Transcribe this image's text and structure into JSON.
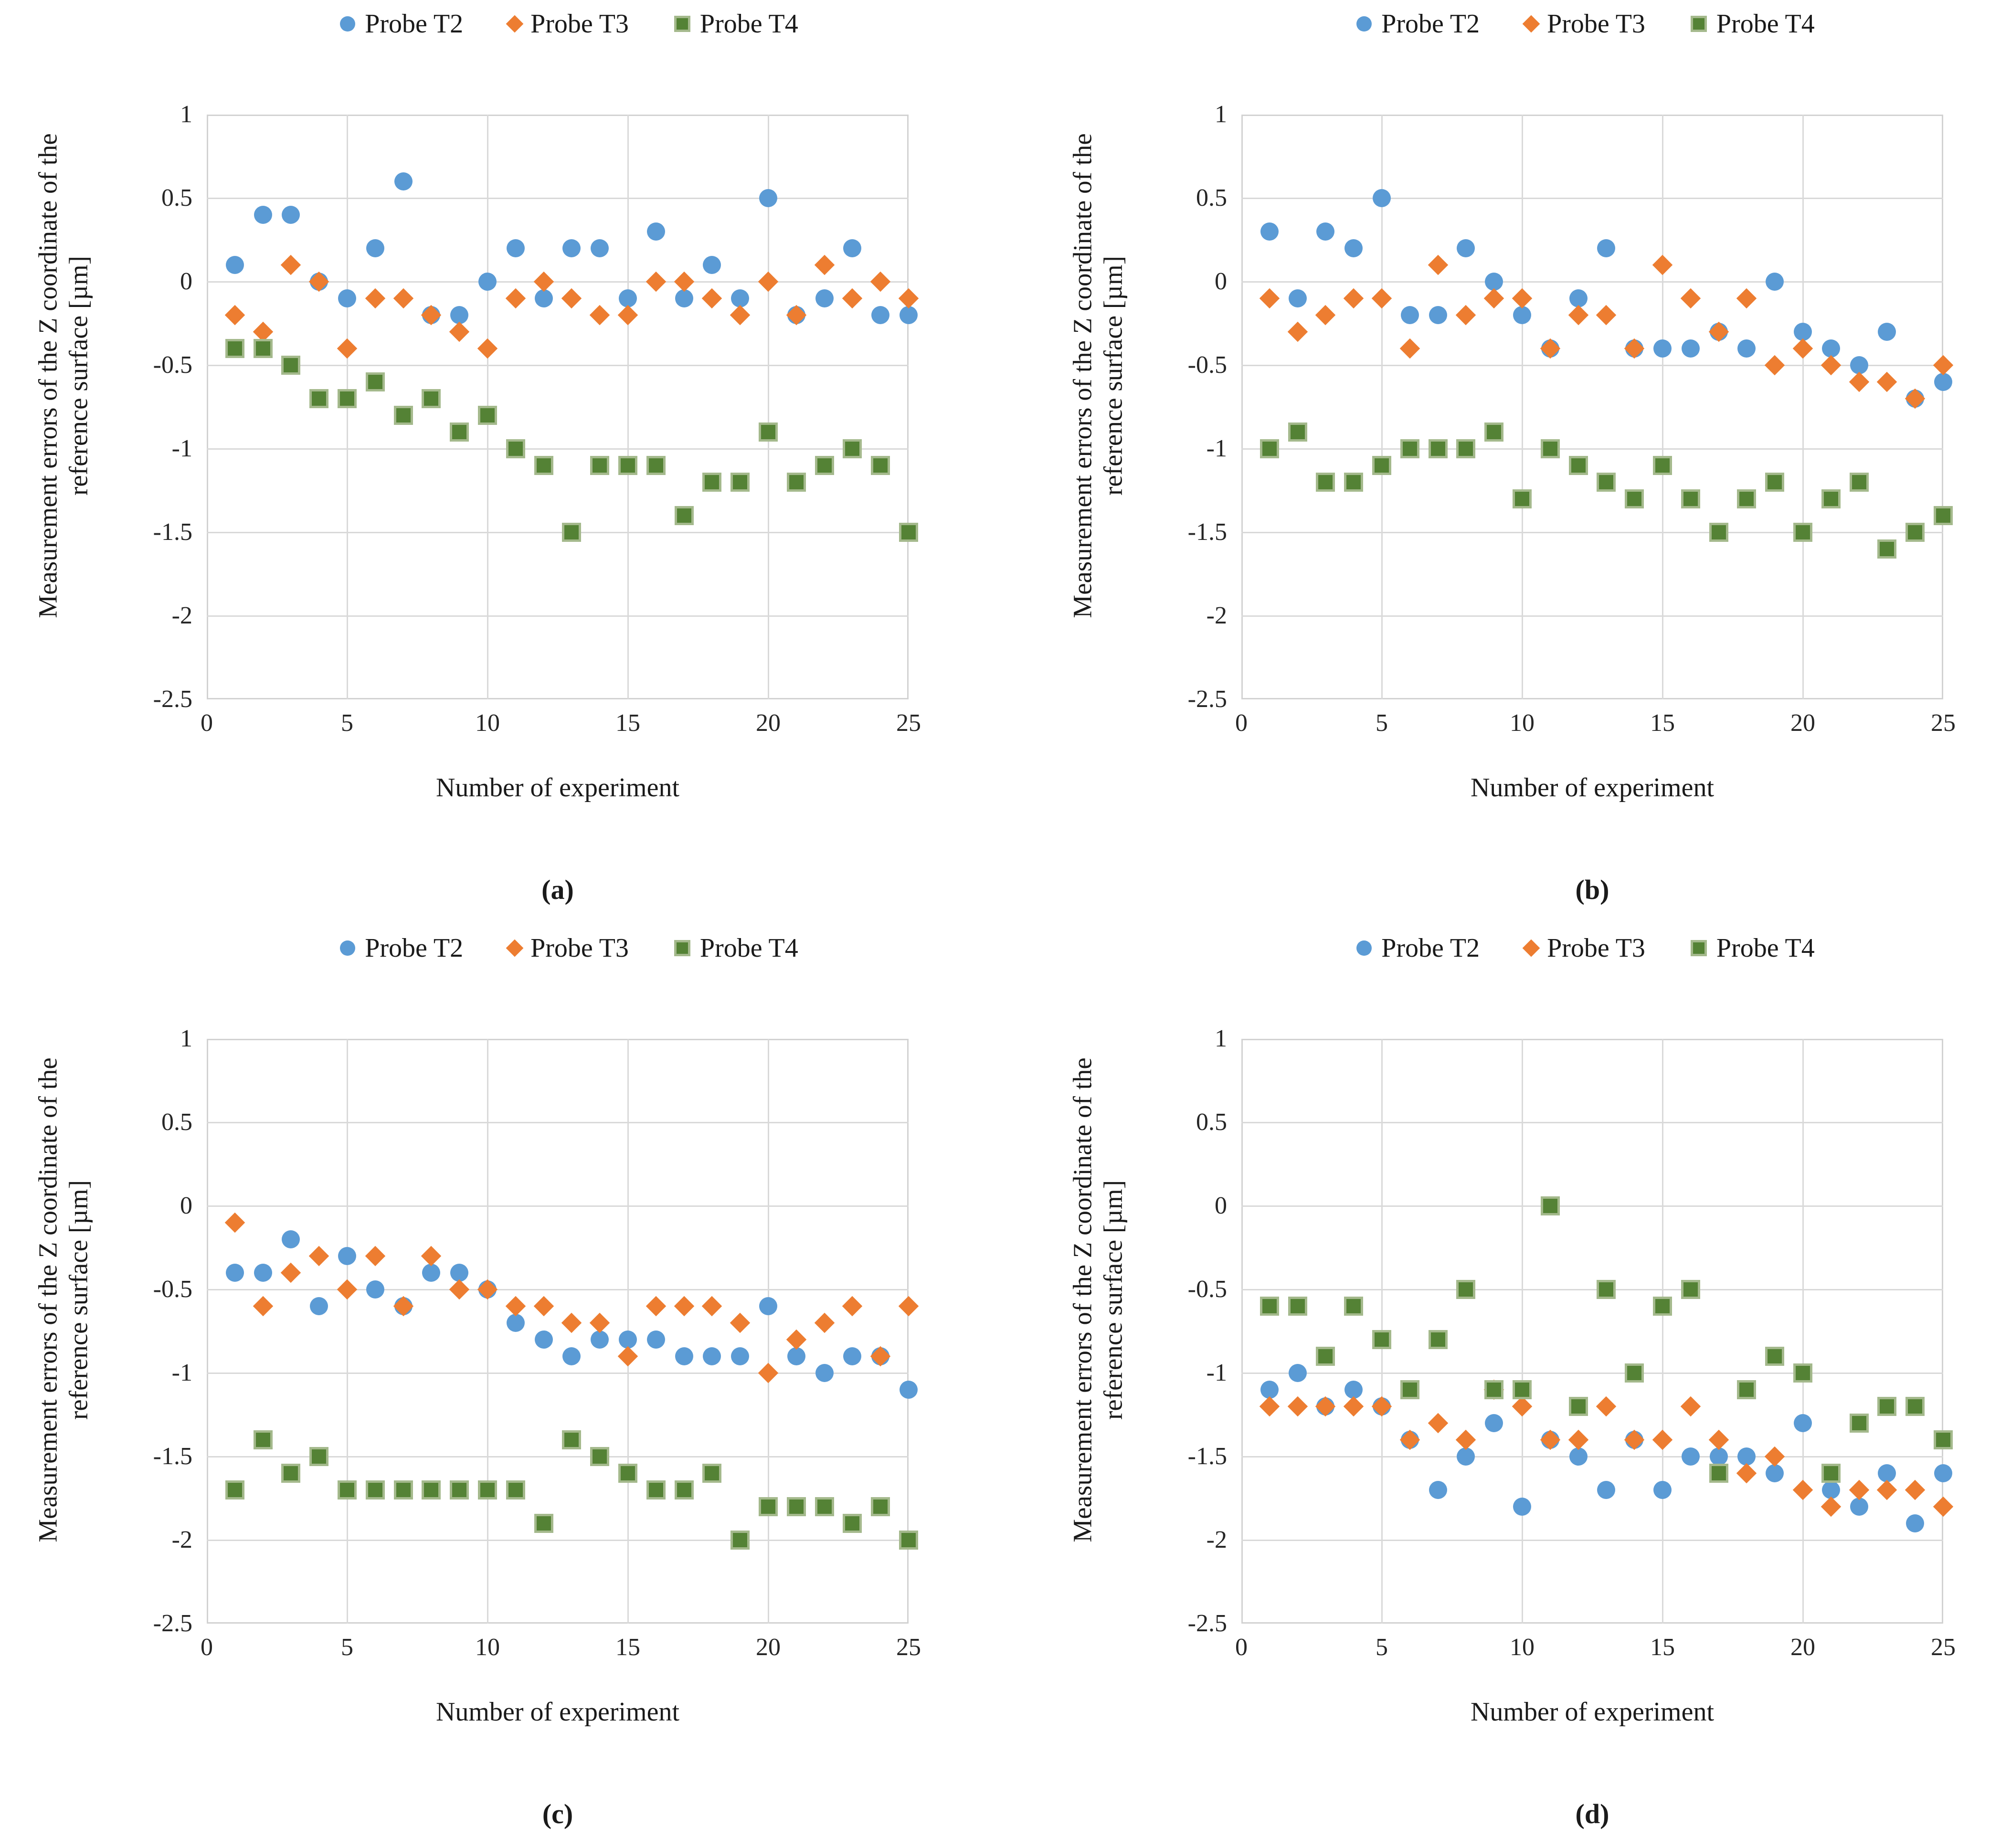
{
  "legend": {
    "items": [
      {
        "label": "Probe T2",
        "color": "#5b9bd5",
        "shape": "circle"
      },
      {
        "label": "Probe T3",
        "color": "#ed7d31",
        "shape": "diamond"
      },
      {
        "label": "Probe T4",
        "color": "#548235",
        "shape": "square",
        "border_color": "#a4b98c"
      }
    ]
  },
  "axes": {
    "y_title": "Measurement errors of the Z coordinate of the reference surface [µm]",
    "x_title": "Number of experiment",
    "ylim": [
      -2.5,
      1
    ],
    "xlim": [
      0,
      25
    ],
    "yticks": [
      1,
      0.5,
      0,
      -0.5,
      -1,
      -1.5,
      -2,
      -2.5
    ],
    "xticks": [
      0,
      5,
      10,
      15,
      20,
      25
    ],
    "grid": true,
    "legend_position": "top"
  },
  "x": [
    1,
    2,
    3,
    4,
    5,
    6,
    7,
    8,
    9,
    10,
    11,
    12,
    13,
    14,
    15,
    16,
    17,
    18,
    19,
    20,
    21,
    22,
    23,
    24,
    25
  ],
  "chart_data": [
    {
      "panel": "a",
      "caption": "(a)",
      "type": "scatter",
      "xlabel": "Number of experiment",
      "ylabel": "Measurement errors of the Z coordinate of the reference surface [µm]",
      "series": [
        {
          "name": "Probe T2",
          "color": "#5b9bd5",
          "shape": "circle",
          "values": [
            0.1,
            0.4,
            0.4,
            0.0,
            -0.1,
            0.2,
            0.6,
            -0.2,
            -0.2,
            0.0,
            0.2,
            -0.1,
            0.2,
            0.2,
            -0.1,
            0.3,
            -0.1,
            0.1,
            -0.1,
            0.5,
            -0.2,
            -0.1,
            0.2,
            -0.2,
            -0.2
          ]
        },
        {
          "name": "Probe T3",
          "color": "#ed7d31",
          "shape": "diamond",
          "values": [
            -0.2,
            -0.3,
            0.1,
            0.0,
            -0.4,
            -0.1,
            -0.1,
            -0.2,
            -0.3,
            -0.4,
            -0.1,
            0.0,
            -0.1,
            -0.2,
            -0.2,
            0.0,
            0.0,
            -0.1,
            -0.2,
            0.0,
            -0.2,
            0.1,
            -0.1,
            0.0,
            -0.1
          ]
        },
        {
          "name": "Probe T4",
          "color": "#548235",
          "shape": "square",
          "values": [
            -0.4,
            -0.4,
            -0.5,
            -0.7,
            -0.7,
            -0.6,
            -0.8,
            -0.7,
            -0.9,
            -0.8,
            -1.0,
            -1.1,
            -1.5,
            -1.1,
            -1.1,
            -1.1,
            -1.4,
            -1.2,
            -1.2,
            -0.9,
            -1.2,
            -1.1,
            -1.0,
            -1.1,
            -1.5
          ]
        }
      ]
    },
    {
      "panel": "b",
      "caption": "(b)",
      "type": "scatter",
      "xlabel": "Number of experiment",
      "ylabel": "Measurement errors of the Z coordinate of the reference surface [µm]",
      "series": [
        {
          "name": "Probe T2",
          "color": "#5b9bd5",
          "shape": "circle",
          "values": [
            0.3,
            -0.1,
            0.3,
            0.2,
            0.5,
            -0.2,
            -0.2,
            0.2,
            0.0,
            -0.2,
            -0.4,
            -0.1,
            0.2,
            -0.4,
            -0.4,
            -0.4,
            -0.3,
            -0.4,
            0.0,
            -0.3,
            -0.4,
            -0.5,
            -0.3,
            -0.7,
            -0.6
          ]
        },
        {
          "name": "Probe T3",
          "color": "#ed7d31",
          "shape": "diamond",
          "values": [
            -0.1,
            -0.3,
            -0.2,
            -0.1,
            -0.1,
            -0.4,
            0.1,
            -0.2,
            -0.1,
            -0.1,
            -0.4,
            -0.2,
            -0.2,
            -0.4,
            0.1,
            -0.1,
            -0.3,
            -0.1,
            -0.5,
            -0.4,
            -0.5,
            -0.6,
            -0.6,
            -0.7,
            -0.5
          ]
        },
        {
          "name": "Probe T4",
          "color": "#548235",
          "shape": "square",
          "values": [
            -1.0,
            -0.9,
            -1.2,
            -1.2,
            -1.1,
            -1.0,
            -1.0,
            -1.0,
            -0.9,
            -1.3,
            -1.0,
            -1.1,
            -1.2,
            -1.3,
            -1.1,
            -1.3,
            -1.5,
            -1.3,
            -1.2,
            -1.5,
            -1.3,
            -1.2,
            -1.6,
            -1.5,
            -1.4
          ]
        }
      ]
    },
    {
      "panel": "c",
      "caption": "(c)",
      "type": "scatter",
      "xlabel": "Number of experiment",
      "ylabel": "Measurement errors of the Z coordinate of the reference surface [µm]",
      "series": [
        {
          "name": "Probe T2",
          "color": "#5b9bd5",
          "shape": "circle",
          "values": [
            -0.4,
            -0.4,
            -0.2,
            -0.6,
            -0.3,
            -0.5,
            -0.6,
            -0.4,
            -0.4,
            -0.5,
            -0.7,
            -0.8,
            -0.9,
            -0.8,
            -0.8,
            -0.8,
            -0.9,
            -0.9,
            -0.9,
            -0.6,
            -0.9,
            -1.0,
            -0.9,
            -0.9,
            -1.1
          ]
        },
        {
          "name": "Probe T3",
          "color": "#ed7d31",
          "shape": "diamond",
          "values": [
            -0.1,
            -0.6,
            -0.4,
            -0.3,
            -0.5,
            -0.3,
            -0.6,
            -0.3,
            -0.5,
            -0.5,
            -0.6,
            -0.6,
            -0.7,
            -0.7,
            -0.9,
            -0.6,
            -0.6,
            -0.6,
            -0.7,
            -1.0,
            -0.8,
            -0.7,
            -0.6,
            -0.9,
            -0.6
          ]
        },
        {
          "name": "Probe T4",
          "color": "#548235",
          "shape": "square",
          "values": [
            -1.7,
            -1.4,
            -1.6,
            -1.5,
            -1.7,
            -1.7,
            -1.7,
            -1.7,
            -1.7,
            -1.7,
            -1.7,
            -1.9,
            -1.4,
            -1.5,
            -1.6,
            -1.7,
            -1.7,
            -1.6,
            -2.0,
            -1.8,
            -1.8,
            -1.8,
            -1.9,
            -1.8,
            -2.0
          ]
        }
      ]
    },
    {
      "panel": "d",
      "caption": "(d)",
      "type": "scatter",
      "xlabel": "Number of experiment",
      "ylabel": "Measurement errors of the Z coordinate of the reference surface [µm]",
      "series": [
        {
          "name": "Probe T2",
          "color": "#5b9bd5",
          "shape": "circle",
          "values": [
            -1.1,
            -1.0,
            -1.2,
            -1.1,
            -1.2,
            -1.4,
            -1.7,
            -1.5,
            -1.3,
            -1.8,
            -1.4,
            -1.5,
            -1.7,
            -1.4,
            -1.7,
            -1.5,
            -1.5,
            -1.5,
            -1.6,
            -1.3,
            -1.7,
            -1.8,
            -1.6,
            -1.9,
            -1.6
          ]
        },
        {
          "name": "Probe T3",
          "color": "#ed7d31",
          "shape": "diamond",
          "values": [
            -1.2,
            -1.2,
            -1.2,
            -1.2,
            -1.2,
            -1.4,
            -1.3,
            -1.4,
            -1.1,
            -1.2,
            -1.4,
            -1.4,
            -1.2,
            -1.4,
            -1.4,
            -1.2,
            -1.4,
            -1.6,
            -1.5,
            -1.7,
            -1.8,
            -1.7,
            -1.7,
            -1.7,
            -1.8
          ]
        },
        {
          "name": "Probe T4",
          "color": "#548235",
          "shape": "square",
          "values": [
            -0.6,
            -0.6,
            -0.9,
            -0.6,
            -0.8,
            -1.1,
            -0.8,
            -0.5,
            -1.1,
            -1.1,
            0.0,
            -1.2,
            -0.5,
            -1.0,
            -0.6,
            -0.5,
            -1.6,
            -1.1,
            -0.9,
            -1.0,
            -1.6,
            -1.3,
            -1.2,
            -1.2,
            -1.4
          ]
        }
      ]
    }
  ]
}
